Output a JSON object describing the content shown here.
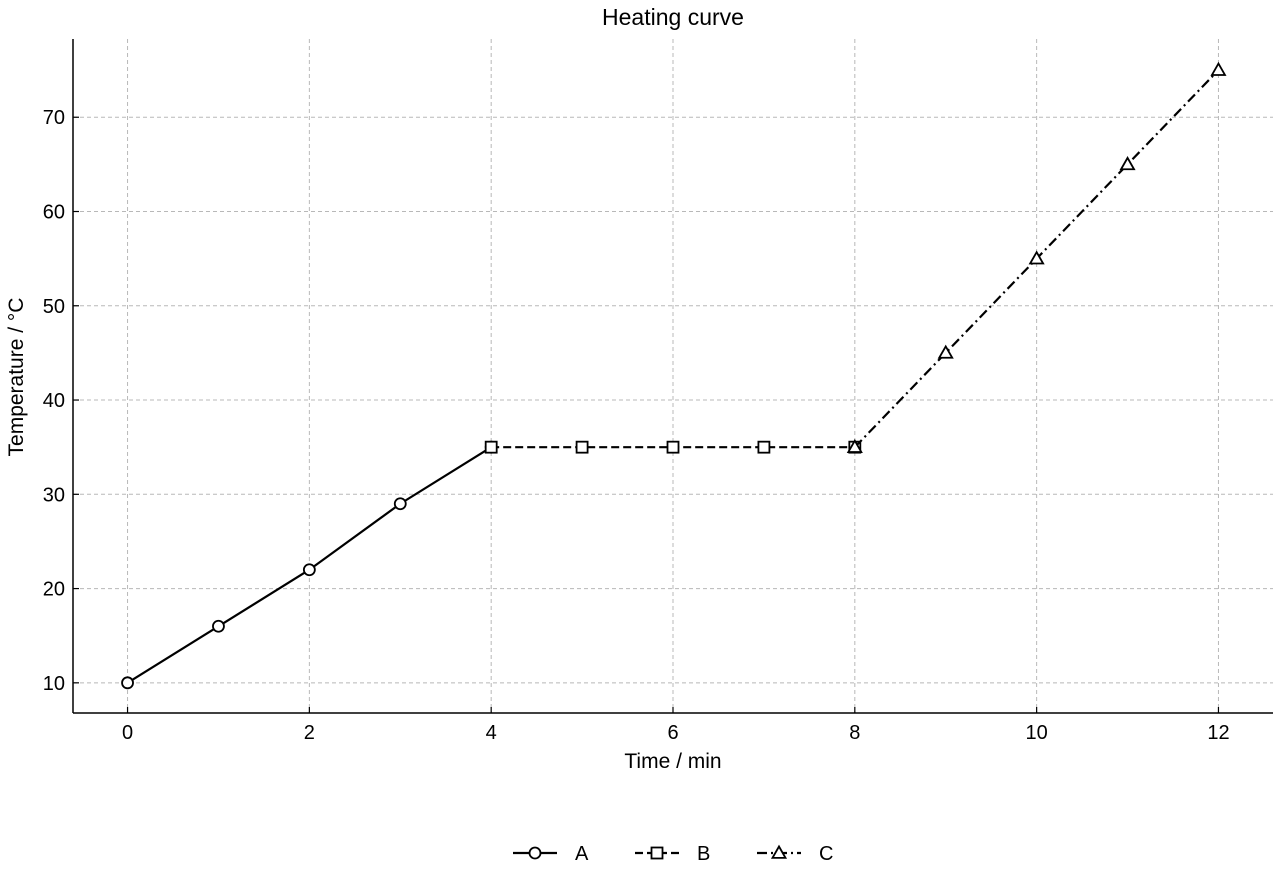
{
  "chart_data": {
    "type": "line",
    "title": "Heating curve",
    "xlabel": "Time / min",
    "ylabel": "Temperature / °C",
    "xlim": [
      -0.6,
      12.6
    ],
    "ylim": [
      6.8,
      78.3
    ],
    "xticks": [
      0,
      2,
      4,
      6,
      8,
      10,
      12
    ],
    "yticks": [
      10,
      20,
      30,
      40,
      50,
      60,
      70
    ],
    "grid": true,
    "legend_position": "bottom-center",
    "series": [
      {
        "name": "A",
        "marker": "circle",
        "line_style": "solid",
        "color": "#000000",
        "x": [
          0,
          1,
          2,
          3,
          4
        ],
        "y": [
          10,
          16,
          22,
          29,
          35
        ]
      },
      {
        "name": "B",
        "marker": "square",
        "line_style": "dashed",
        "color": "#000000",
        "x": [
          4,
          5,
          6,
          7,
          8
        ],
        "y": [
          35,
          35,
          35,
          35,
          35
        ]
      },
      {
        "name": "C",
        "marker": "triangle",
        "line_style": "dashdot",
        "color": "#000000",
        "x": [
          8,
          9,
          10,
          11,
          12
        ],
        "y": [
          35,
          45,
          55,
          65,
          75
        ]
      }
    ]
  }
}
